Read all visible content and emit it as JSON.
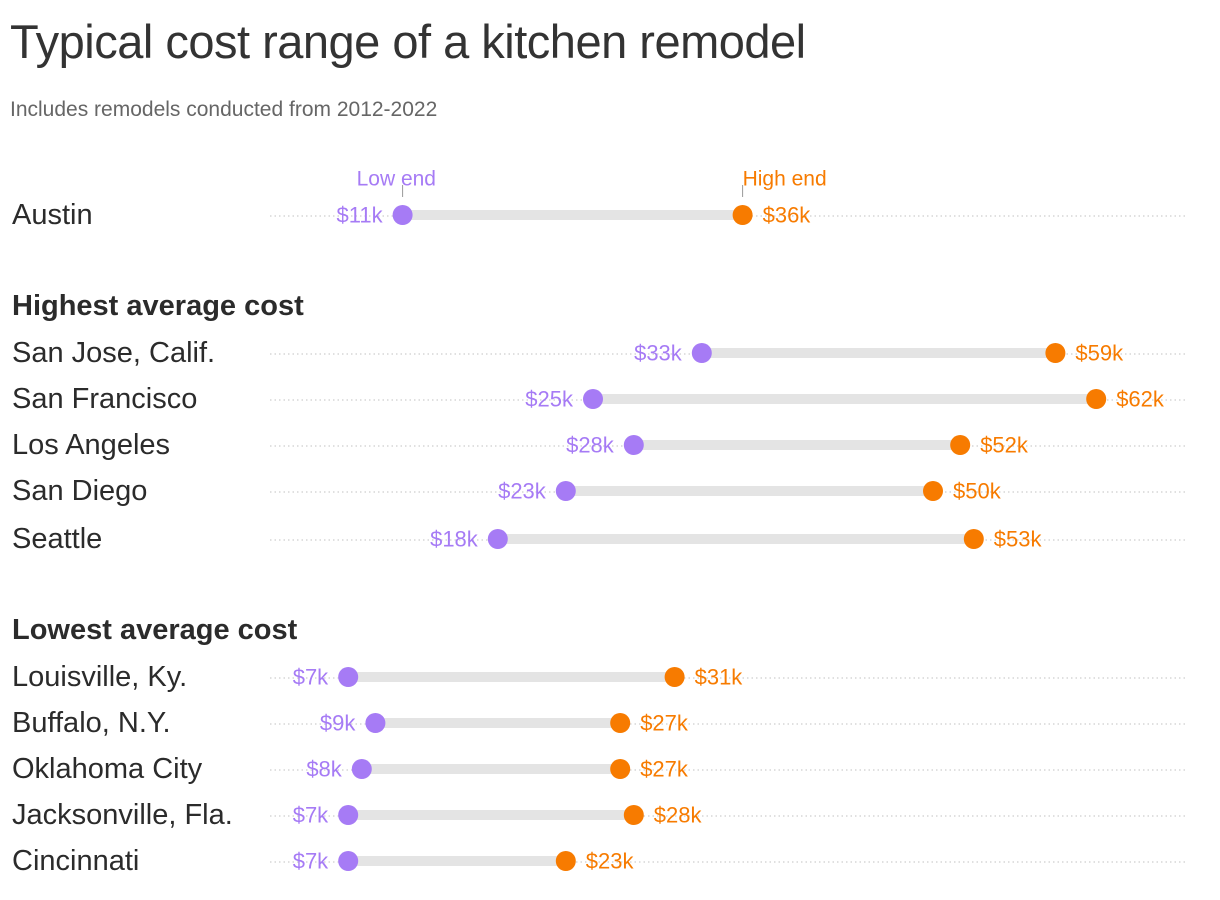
{
  "title": "Typical cost range of a kitchen remodel",
  "subtitle": "Includes remodels conducted from 2012-2022",
  "colors": {
    "low": "#a67bf5",
    "high": "#f77b00",
    "bar": "#e4e4e4",
    "dots": "#d6d6d6"
  },
  "legend": {
    "low": "Low end",
    "high": "High end"
  },
  "chart_data": {
    "type": "dumbbell",
    "title": "Typical cost range of a kitchen remodel",
    "subtitle": "Includes remodels conducted from 2012-2022",
    "series": [
      {
        "name": "Low end",
        "key": "low"
      },
      {
        "name": "High end",
        "key": "high"
      }
    ],
    "unit": "thousand dollars",
    "groups": [
      {
        "heading": "",
        "rows": [
          {
            "label": "Austin",
            "low": 11,
            "high": 36,
            "low_label": "$11k",
            "high_label": "$36k"
          }
        ]
      },
      {
        "heading": "Highest average cost",
        "rows": [
          {
            "label": "San Jose, Calif.",
            "low": 33,
            "high": 59,
            "low_label": "$33k",
            "high_label": "$59k"
          },
          {
            "label": "San Francisco",
            "low": 25,
            "high": 62,
            "low_label": "$25k",
            "high_label": "$62k"
          },
          {
            "label": "Los Angeles",
            "low": 28,
            "high": 52,
            "low_label": "$28k",
            "high_label": "$52k"
          },
          {
            "label": "San Diego",
            "low": 23,
            "high": 50,
            "low_label": "$23k",
            "high_label": "$50k"
          },
          {
            "label": "Seattle",
            "low": 18,
            "high": 53,
            "low_label": "$18k",
            "high_label": "$53k"
          }
        ]
      },
      {
        "heading": "Lowest average cost",
        "rows": [
          {
            "label": "Louisville, Ky.",
            "low": 7,
            "high": 31,
            "low_label": "$7k",
            "high_label": "$31k"
          },
          {
            "label": "Buffalo, N.Y.",
            "low": 9,
            "high": 27,
            "low_label": "$9k",
            "high_label": "$27k"
          },
          {
            "label": "Oklahoma City",
            "low": 8,
            "high": 27,
            "low_label": "$8k",
            "high_label": "$27k"
          },
          {
            "label": "Jacksonville, Fla.",
            "low": 7,
            "high": 28,
            "low_label": "$7k",
            "high_label": "$28k"
          },
          {
            "label": "Cincinnati",
            "low": 7,
            "high": 23,
            "low_label": "$7k",
            "high_label": "$23k"
          }
        ]
      }
    ],
    "grid": true,
    "legend_position": "above first row"
  }
}
